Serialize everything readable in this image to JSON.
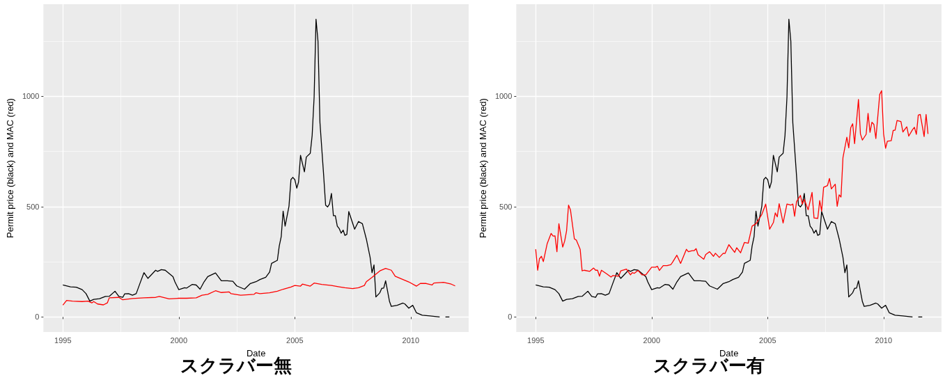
{
  "chart_data": [
    {
      "type": "line",
      "title": "スクラバー無",
      "xlabel": "Date",
      "ylabel": "Permit price (black) and MAC (red)",
      "grid": true,
      "xlim": [
        "1994-03",
        "2012-07"
      ],
      "ylim": [
        -68,
        1418
      ],
      "xticks": [
        "1995",
        {
          "value": "1997-07",
          "label": null
        },
        "2000",
        {
          "value": "2002-07",
          "label": null
        },
        "2005",
        {
          "value": "2007-07",
          "label": null
        },
        "2010",
        {
          "value": "2012-07",
          "label": null
        }
      ],
      "yticks": [
        0,
        {
          "value": 250,
          "label": null
        },
        500,
        {
          "value": 750,
          "label": null
        },
        1000,
        {
          "value": 1250,
          "label": null
        }
      ],
      "series": [
        {
          "color": "#000000",
          "x": [
            "1995-01",
            "1995-05",
            "1995-08",
            "1995-11",
            "1996-01",
            "1996-03",
            "1996-05",
            "1996-08",
            "1996-11",
            "1997-01",
            "1997-04",
            "1997-06",
            "1997-08",
            "1997-09",
            "1997-11",
            "1998-01",
            "1998-03",
            "1998-05",
            "1998-07",
            "1998-09",
            "1999-01",
            "1999-02",
            "1999-04",
            "1999-06",
            "1999-10",
            "1999-11",
            "2000-01",
            "2000-04",
            "2000-05",
            "2000-08",
            "2000-10",
            "2000-12",
            "2001-02",
            "2001-04",
            "2001-08",
            "2001-11",
            "2002-02",
            "2002-05",
            "2002-07",
            "2002-11",
            "2003-02",
            "2003-05",
            "2003-07",
            "2003-10",
            "2003-12",
            "2004-01",
            "2004-04",
            "2004-05",
            "2004-06",
            "2004-07",
            "2004-08",
            "2004-10",
            "2004-11",
            "2004-12",
            "2005-01",
            "2005-02",
            "2005-03",
            "2005-04",
            "2005-06",
            "2005-07",
            "2005-09",
            "2005-10",
            "2005-11",
            "2005-12",
            "2006-01",
            "2006-02",
            "2006-04",
            "2006-05",
            "2006-06",
            "2006-07",
            "2006-08",
            "2006-09",
            "2006-10",
            "2006-11",
            "2006-12",
            "2007-01",
            "2007-02",
            "2007-03",
            "2007-04",
            "2007-05",
            "2007-08",
            "2007-10",
            "2007-12",
            "2008-02",
            "2008-04",
            "2008-05",
            "2008-06",
            "2008-07",
            "2008-09",
            "2008-10",
            "2008-11",
            "2008-12",
            "2009-02",
            "2009-03",
            "2009-06",
            "2009-09",
            "2009-10",
            "2009-12",
            "2010-02",
            "2010-04",
            "2010-07",
            "2010-11",
            "2011-04"
          ],
          "values": [
            145,
            137,
            135,
            124,
            106,
            72,
            80,
            83,
            93,
            94,
            117,
            93,
            89,
            105,
            106,
            99,
            106,
            154,
            201,
            175,
            212,
            207,
            215,
            212,
            183,
            159,
            124,
            133,
            131,
            148,
            145,
            126,
            159,
            183,
            200,
            164,
            164,
            162,
            141,
            126,
            152,
            160,
            170,
            180,
            204,
            243,
            257,
            322,
            365,
            480,
            412,
            502,
            623,
            633,
            623,
            584,
            612,
            733,
            658,
            725,
            742,
            823,
            997,
            1350,
            1250,
            881,
            639,
            507,
            499,
            512,
            560,
            459,
            459,
            412,
            401,
            380,
            394,
            370,
            375,
            478,
            398,
            433,
            423,
            354,
            270,
            201,
            236,
            91,
            110,
            130,
            131,
            164,
            70,
            48,
            53,
            63,
            59,
            40,
            53,
            19,
            8,
            5,
            0
          ]
        },
        {
          "color": "#000000",
          "x": [
            "2011-07",
            "2011-08",
            "2011-09"
          ],
          "values": [
            0,
            0,
            0
          ]
        },
        {
          "color": "#ff0000",
          "x": [
            "1995-01",
            "1995-03",
            "1995-06",
            "1995-11",
            "1996-02",
            "1996-04",
            "1996-05",
            "1996-07",
            "1996-10",
            "1996-12",
            "1997-01",
            "1997-06",
            "1997-08",
            "1998-01",
            "1998-07",
            "1999-01",
            "1999-03",
            "1999-08",
            "2000-01",
            "2000-05",
            "2000-10",
            "2001-01",
            "2001-04",
            "2001-08",
            "2001-11",
            "2002-03",
            "2002-04",
            "2002-09",
            "2003-04",
            "2003-05",
            "2003-07",
            "2003-12",
            "2004-04",
            "2004-07",
            "2004-11",
            "2005-01",
            "2005-04",
            "2005-05",
            "2005-09",
            "2005-11",
            "2006-03",
            "2006-08",
            "2006-12",
            "2007-03",
            "2007-07",
            "2007-10",
            "2008-01",
            "2008-02",
            "2008-05",
            "2008-09",
            "2008-12",
            "2009-03",
            "2009-05",
            "2009-09",
            "2009-12",
            "2010-04",
            "2010-06",
            "2010-09",
            "2010-12",
            "2011-01",
            "2011-06",
            "2011-10",
            "2011-12"
          ],
          "values": [
            54,
            75,
            72,
            70,
            72,
            64,
            70,
            59,
            55,
            64,
            87,
            89,
            78,
            84,
            87,
            89,
            93,
            82,
            85,
            85,
            87,
            99,
            103,
            119,
            111,
            114,
            106,
            99,
            103,
            110,
            106,
            110,
            117,
            126,
            136,
            143,
            140,
            149,
            140,
            154,
            148,
            143,
            137,
            133,
            129,
            133,
            143,
            160,
            180,
            209,
            220,
            212,
            185,
            170,
            159,
            140,
            152,
            152,
            145,
            154,
            157,
            149,
            141
          ]
        }
      ]
    },
    {
      "type": "line",
      "title": "スクラバー有",
      "xlabel": "Date",
      "ylabel": "Permit price (black) and MAC (red)",
      "grid": true,
      "xlim": [
        "1994-03",
        "2012-07"
      ],
      "ylim": [
        -68,
        1418
      ],
      "xticks": [
        "1995",
        {
          "value": "1997-07",
          "label": null
        },
        "2000",
        {
          "value": "2002-07",
          "label": null
        },
        "2005",
        {
          "value": "2007-07",
          "label": null
        },
        "2010",
        {
          "value": "2012-07",
          "label": null
        }
      ],
      "yticks": [
        0,
        {
          "value": 250,
          "label": null
        },
        500,
        {
          "value": 750,
          "label": null
        },
        1000,
        {
          "value": 1250,
          "label": null
        }
      ],
      "series": [
        {
          "color": "#000000",
          "x": [
            "1995-01",
            "1995-05",
            "1995-08",
            "1995-11",
            "1996-01",
            "1996-03",
            "1996-05",
            "1996-08",
            "1996-11",
            "1997-01",
            "1997-04",
            "1997-06",
            "1997-08",
            "1997-09",
            "1997-11",
            "1998-01",
            "1998-03",
            "1998-05",
            "1998-07",
            "1998-09",
            "1999-01",
            "1999-02",
            "1999-04",
            "1999-06",
            "1999-10",
            "1999-11",
            "2000-01",
            "2000-04",
            "2000-05",
            "2000-08",
            "2000-10",
            "2000-12",
            "2001-02",
            "2001-04",
            "2001-08",
            "2001-11",
            "2002-02",
            "2002-05",
            "2002-07",
            "2002-11",
            "2003-02",
            "2003-05",
            "2003-07",
            "2003-10",
            "2003-12",
            "2004-01",
            "2004-04",
            "2004-05",
            "2004-06",
            "2004-07",
            "2004-08",
            "2004-10",
            "2004-11",
            "2004-12",
            "2005-01",
            "2005-02",
            "2005-03",
            "2005-04",
            "2005-06",
            "2005-07",
            "2005-09",
            "2005-10",
            "2005-11",
            "2005-12",
            "2006-01",
            "2006-02",
            "2006-04",
            "2006-05",
            "2006-06",
            "2006-07",
            "2006-08",
            "2006-09",
            "2006-10",
            "2006-11",
            "2006-12",
            "2007-01",
            "2007-02",
            "2007-03",
            "2007-04",
            "2007-05",
            "2007-08",
            "2007-10",
            "2007-12",
            "2008-02",
            "2008-04",
            "2008-05",
            "2008-06",
            "2008-07",
            "2008-09",
            "2008-10",
            "2008-11",
            "2008-12",
            "2009-02",
            "2009-03",
            "2009-06",
            "2009-09",
            "2009-10",
            "2009-12",
            "2010-02",
            "2010-04",
            "2010-07",
            "2010-11",
            "2011-04"
          ],
          "values": [
            145,
            137,
            135,
            124,
            106,
            72,
            80,
            83,
            93,
            94,
            117,
            93,
            89,
            105,
            106,
            99,
            106,
            154,
            201,
            175,
            212,
            207,
            215,
            212,
            183,
            159,
            124,
            133,
            131,
            148,
            145,
            126,
            159,
            183,
            200,
            164,
            164,
            162,
            141,
            126,
            152,
            160,
            170,
            180,
            204,
            243,
            257,
            322,
            365,
            480,
            412,
            502,
            623,
            633,
            623,
            584,
            612,
            733,
            658,
            725,
            742,
            823,
            997,
            1350,
            1250,
            881,
            639,
            507,
            499,
            512,
            560,
            459,
            459,
            412,
            401,
            380,
            394,
            370,
            375,
            478,
            398,
            433,
            423,
            354,
            270,
            201,
            236,
            91,
            110,
            130,
            131,
            164,
            70,
            48,
            53,
            63,
            59,
            40,
            53,
            19,
            8,
            5,
            0
          ]
        },
        {
          "color": "#000000",
          "x": [
            "2011-07",
            "2011-08",
            "2011-09"
          ],
          "values": [
            0,
            0,
            0
          ]
        },
        {
          "color": "#ff0000",
          "x": [
            "1995-01",
            "1995-02",
            "1995-03",
            "1995-04",
            "1995-05",
            "1995-07",
            "1995-09",
            "1995-10",
            "1995-11",
            "1995-12",
            "1996-01",
            "1996-03",
            "1996-04",
            "1996-05",
            "1996-06",
            "1996-07",
            "1996-09",
            "1996-10",
            "1996-12",
            "1997-01",
            "1997-02",
            "1997-05",
            "1997-07",
            "1997-08",
            "1997-09",
            "1997-10",
            "1997-11",
            "1998-02",
            "1998-04",
            "1998-05",
            "1998-08",
            "1998-09",
            "1998-12",
            "1999-02",
            "1999-03",
            "1999-04",
            "1999-06",
            "1999-08",
            "1999-10",
            "2000-01",
            "2000-03",
            "2000-04",
            "2000-05",
            "2000-07",
            "2000-09",
            "2000-11",
            "2000-12",
            "2001-02",
            "2001-04",
            "2001-07",
            "2001-08",
            "2001-10",
            "2001-11",
            "2001-12",
            "2002-01",
            "2002-04",
            "2002-05",
            "2002-07",
            "2002-09",
            "2002-10",
            "2002-12",
            "2003-02",
            "2003-03",
            "2003-05",
            "2003-08",
            "2003-09",
            "2003-11",
            "2004-01",
            "2004-03",
            "2004-05",
            "2004-07",
            "2004-10",
            "2004-12",
            "2005-02",
            "2005-04",
            "2005-05",
            "2005-06",
            "2005-07",
            "2005-09",
            "2005-11",
            "2006-01",
            "2006-02",
            "2006-03",
            "2006-04",
            "2006-06",
            "2006-07",
            "2006-08",
            "2006-10",
            "2006-12",
            "2007-01",
            "2007-03",
            "2007-04",
            "2007-05",
            "2007-06",
            "2007-08",
            "2007-09",
            "2007-10",
            "2007-12",
            "2008-01",
            "2008-02",
            "2008-03",
            "2008-04",
            "2008-06",
            "2008-07",
            "2008-08",
            "2008-09",
            "2008-10",
            "2008-12",
            "2009-01",
            "2009-02",
            "2009-04",
            "2009-05",
            "2009-06",
            "2009-07",
            "2009-08",
            "2009-09",
            "2009-11",
            "2009-12",
            "2010-01",
            "2010-02",
            "2010-03",
            "2010-05",
            "2010-06",
            "2010-07",
            "2010-08",
            "2010-10",
            "2010-11",
            "2011-01",
            "2011-02",
            "2011-04",
            "2011-05",
            "2011-06",
            "2011-07",
            "2011-08",
            "2011-10",
            "2011-11",
            "2011-12"
          ],
          "values": [
            307,
            212,
            264,
            275,
            251,
            333,
            379,
            367,
            368,
            296,
            423,
            317,
            344,
            391,
            507,
            486,
            354,
            349,
            307,
            209,
            212,
            207,
            222,
            212,
            212,
            185,
            212,
            194,
            181,
            188,
            185,
            209,
            217,
            191,
            201,
            198,
            211,
            191,
            191,
            226,
            226,
            230,
            211,
            233,
            233,
            238,
            251,
            280,
            243,
            307,
            296,
            301,
            301,
            310,
            282,
            262,
            283,
            296,
            275,
            289,
            270,
            289,
            288,
            328,
            293,
            314,
            291,
            338,
            335,
            412,
            423,
            465,
            512,
            398,
            428,
            472,
            454,
            514,
            426,
            512,
            507,
            512,
            457,
            523,
            551,
            512,
            533,
            486,
            565,
            449,
            447,
            528,
            480,
            588,
            596,
            628,
            581,
            602,
            502,
            554,
            544,
            723,
            815,
            767,
            858,
            876,
            786,
            986,
            830,
            802,
            828,
            923,
            837,
            883,
            873,
            809,
            1009,
            1026,
            830,
            765,
            797,
            799,
            846,
            847,
            891,
            886,
            839,
            862,
            820,
            849,
            860,
            828,
            915,
            918,
            818,
            918,
            830
          ]
        }
      ]
    }
  ]
}
